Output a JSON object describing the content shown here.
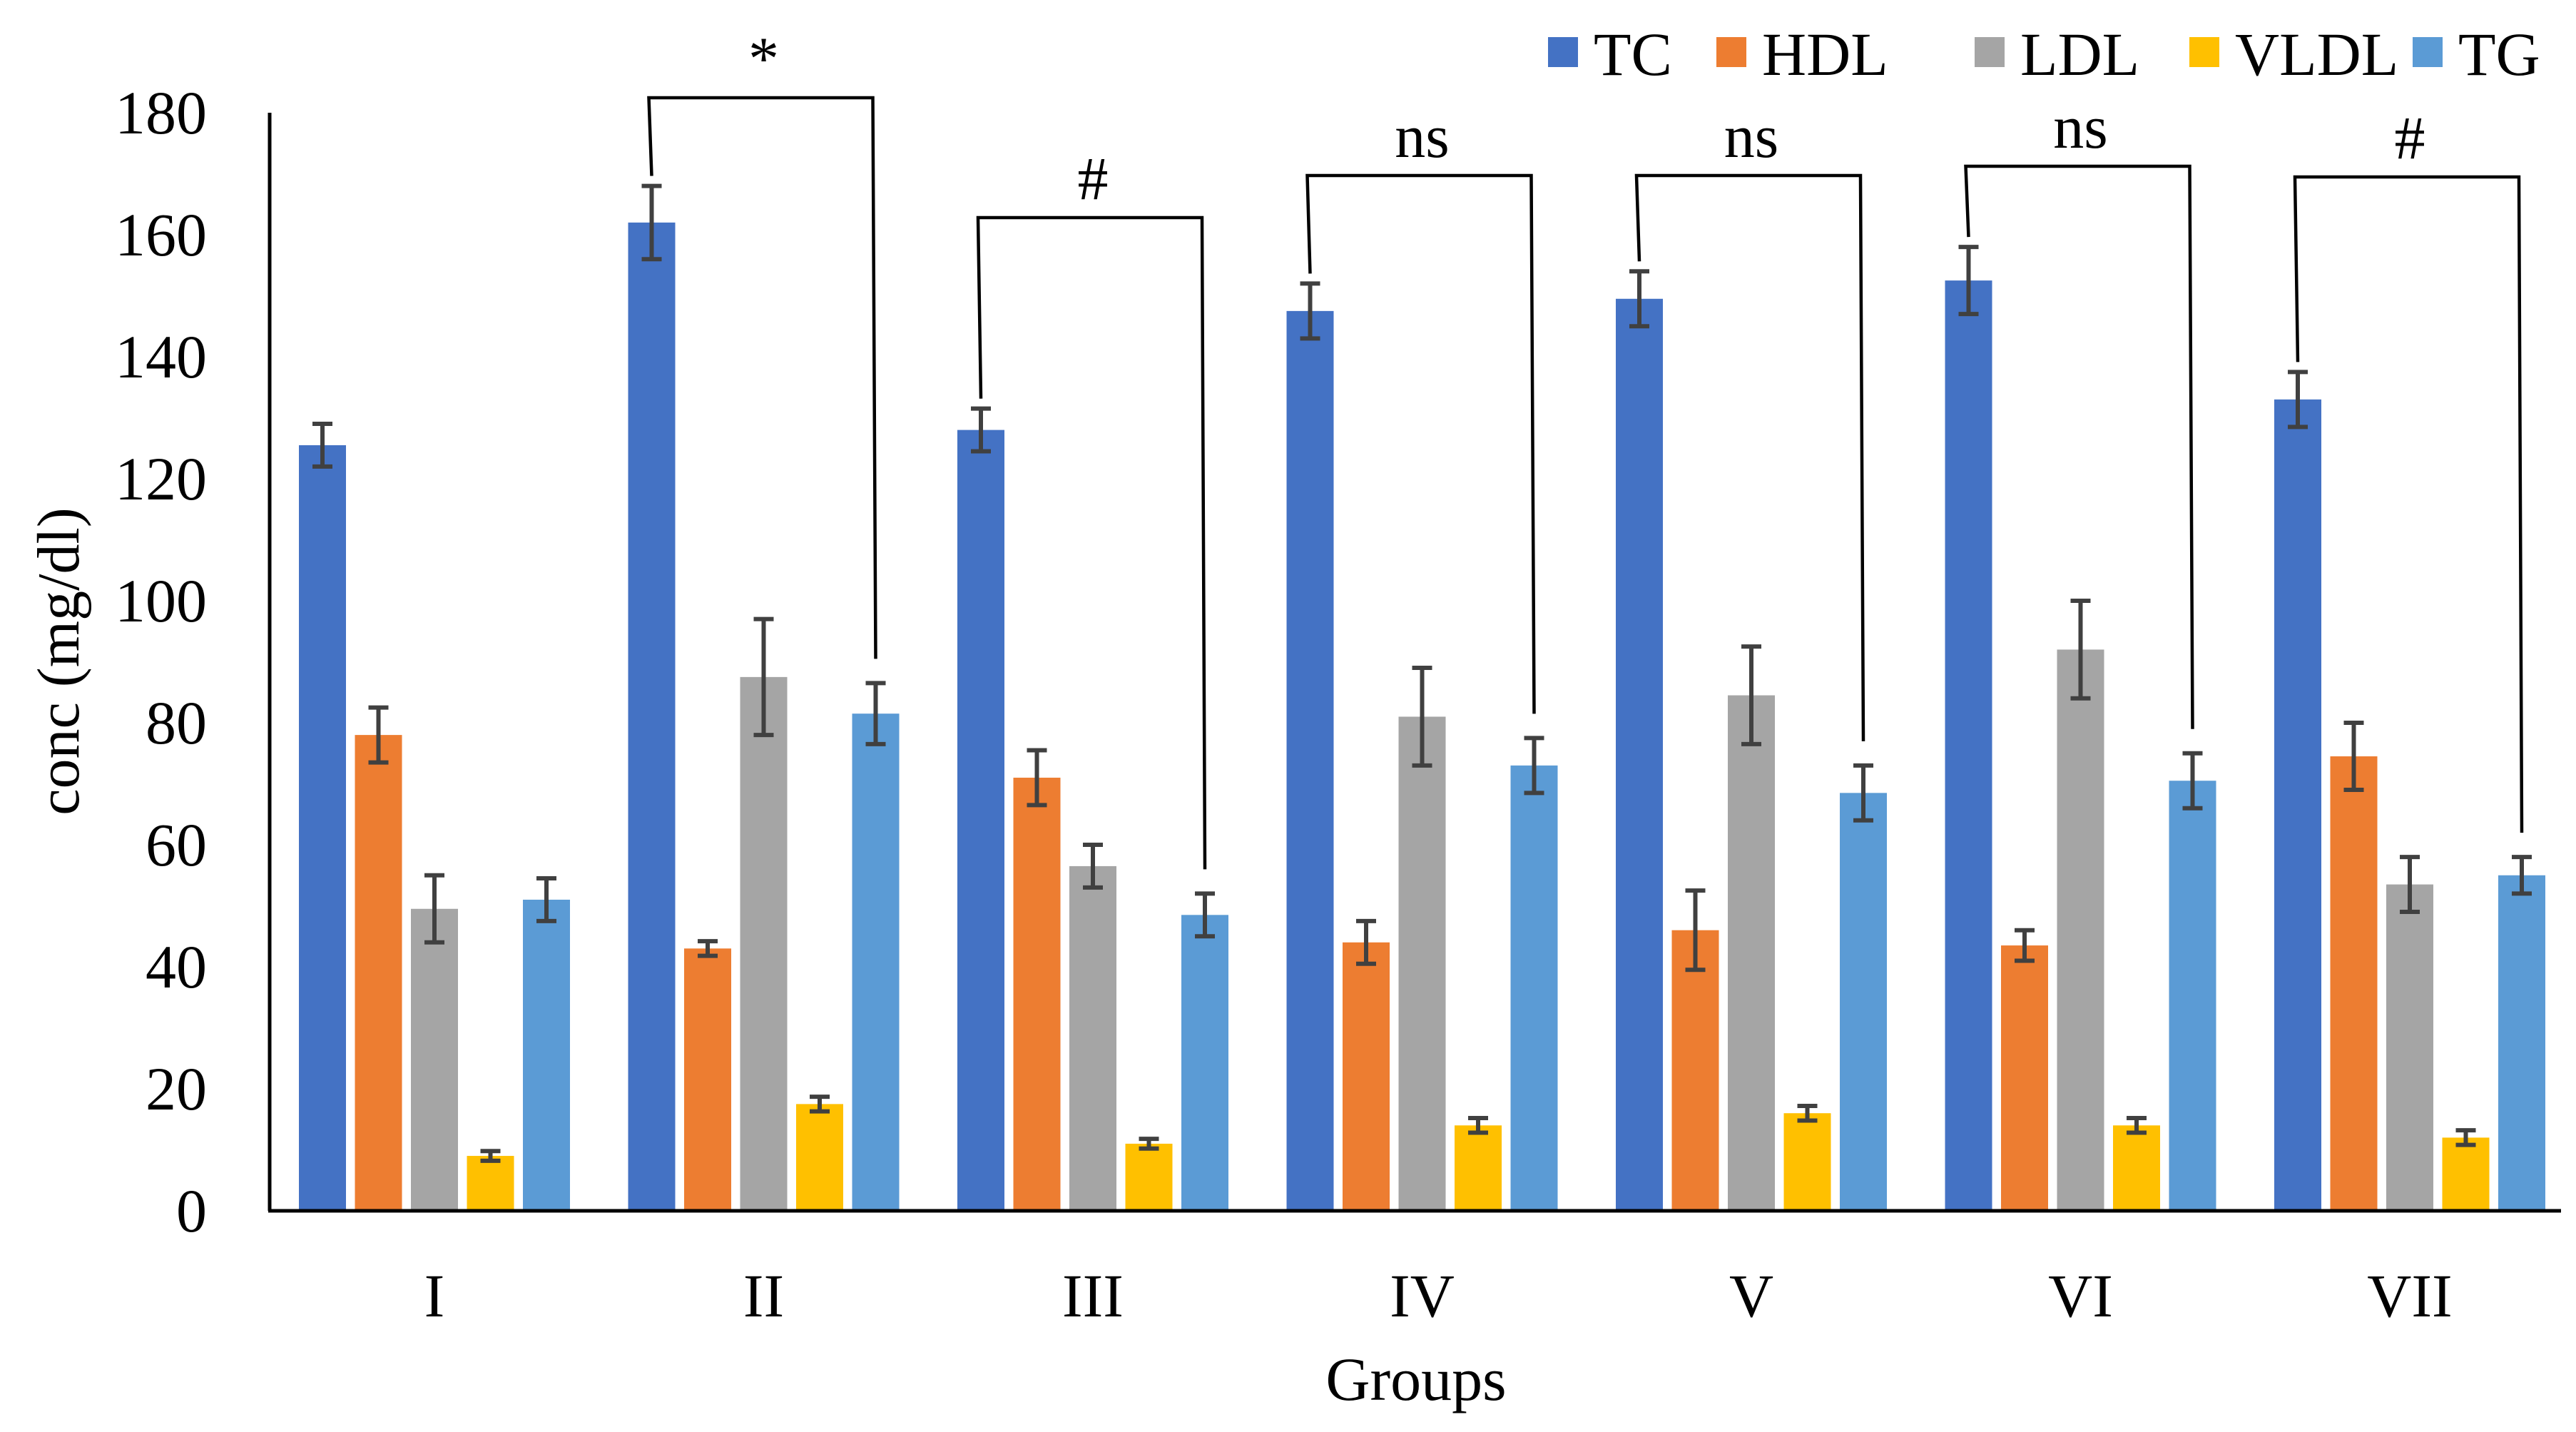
{
  "chart_data": {
    "type": "bar",
    "title": "",
    "xlabel": "Groups",
    "ylabel": "conc (mg/dl)",
    "ylim": [
      0,
      180
    ],
    "yticks": [
      0,
      20,
      40,
      60,
      80,
      100,
      120,
      140,
      160,
      180
    ],
    "grid": false,
    "legend_position": "top-right",
    "categories": [
      "I",
      "II",
      "III",
      "IV",
      "V",
      "VI",
      "VII"
    ],
    "series": [
      {
        "name": "TC",
        "color": "#4472C4",
        "values": [
          125.5,
          162,
          128,
          147.5,
          149.5,
          152.5,
          133
        ],
        "errors": [
          3.5,
          6,
          3.5,
          4.5,
          4.5,
          5.5,
          4.5
        ]
      },
      {
        "name": "HDL",
        "color": "#ED7D31",
        "values": [
          78,
          43,
          71,
          44,
          46,
          43.5,
          74.5
        ],
        "errors": [
          4.5,
          1.2,
          4.5,
          3.5,
          6.5,
          2.5,
          5.5
        ]
      },
      {
        "name": "LDL",
        "color": "#A5A5A5",
        "values": [
          49.5,
          87.5,
          56.5,
          81,
          84.5,
          92,
          53.5
        ],
        "errors": [
          5.5,
          9.5,
          3.5,
          8,
          8,
          8,
          4.5
        ]
      },
      {
        "name": "VLDL",
        "color": "#FFC000",
        "values": [
          9,
          17.5,
          11,
          14,
          16,
          14,
          12
        ],
        "errors": [
          0.8,
          1.2,
          0.8,
          1.2,
          1.2,
          1.2,
          1.2
        ]
      },
      {
        "name": "TG",
        "color": "#5B9BD5",
        "values": [
          51,
          81.5,
          48.5,
          73,
          68.5,
          70.5,
          55
        ],
        "errors": [
          3.5,
          5,
          3.5,
          4.5,
          4.5,
          4.5,
          3
        ]
      }
    ],
    "annotations": [
      {
        "group": "II",
        "label": "*"
      },
      {
        "group": "III",
        "label": "#"
      },
      {
        "group": "IV",
        "label": "ns"
      },
      {
        "group": "V",
        "label": "ns"
      },
      {
        "group": "VI",
        "label": "ns"
      },
      {
        "group": "VII",
        "label": "#"
      }
    ]
  }
}
